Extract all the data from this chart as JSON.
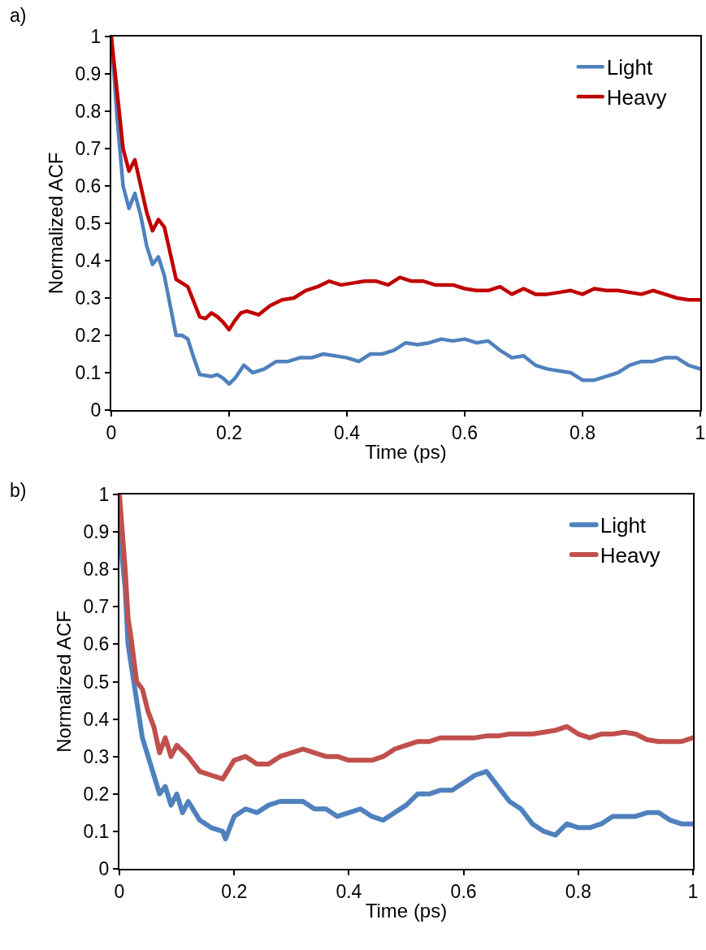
{
  "chart_data": [
    {
      "type": "line",
      "annotations": [
        "a)"
      ],
      "xlabel": "Time (ps)",
      "ylabel": "Normalized ACF",
      "xlim": [
        0,
        1
      ],
      "xticks": [
        0,
        0.2,
        0.4,
        0.6,
        0.8,
        1
      ],
      "ylim": [
        0,
        1
      ],
      "yticks": [
        0,
        0.1,
        0.2,
        0.3,
        0.4,
        0.5,
        0.6,
        0.7,
        0.8,
        0.9,
        1
      ],
      "grid": false,
      "legend": "top right",
      "marker": "none",
      "line_style": "solid",
      "series": [
        {
          "name": "Light",
          "color": "#4f81bd",
          "x": [
            0,
            0.01,
            0.02,
            0.03,
            0.04,
            0.05,
            0.06,
            0.07,
            0.08,
            0.09,
            0.1,
            0.11,
            0.12,
            0.13,
            0.14,
            0.15,
            0.17,
            0.18,
            0.19,
            0.2,
            0.21,
            0.225,
            0.24,
            0.26,
            0.28,
            0.3,
            0.32,
            0.34,
            0.36,
            0.38,
            0.4,
            0.42,
            0.44,
            0.46,
            0.48,
            0.5,
            0.52,
            0.54,
            0.56,
            0.58,
            0.6,
            0.62,
            0.64,
            0.66,
            0.68,
            0.7,
            0.72,
            0.74,
            0.76,
            0.78,
            0.8,
            0.82,
            0.84,
            0.86,
            0.88,
            0.9,
            0.92,
            0.94,
            0.96,
            0.98,
            1
          ],
          "values": [
            1,
            0.78,
            0.6,
            0.54,
            0.58,
            0.52,
            0.44,
            0.39,
            0.41,
            0.36,
            0.28,
            0.2,
            0.2,
            0.19,
            0.14,
            0.095,
            0.09,
            0.095,
            0.085,
            0.07,
            0.085,
            0.12,
            0.1,
            0.11,
            0.13,
            0.13,
            0.14,
            0.14,
            0.15,
            0.145,
            0.14,
            0.13,
            0.15,
            0.15,
            0.16,
            0.18,
            0.175,
            0.18,
            0.19,
            0.185,
            0.19,
            0.18,
            0.185,
            0.16,
            0.14,
            0.145,
            0.12,
            0.11,
            0.105,
            0.1,
            0.08,
            0.08,
            0.09,
            0.1,
            0.12,
            0.13,
            0.13,
            0.14,
            0.14,
            0.12,
            0.11
          ]
        },
        {
          "name": "Heavy",
          "color": "#c00000",
          "x": [
            0,
            0.01,
            0.02,
            0.03,
            0.04,
            0.05,
            0.06,
            0.07,
            0.08,
            0.09,
            0.1,
            0.11,
            0.12,
            0.13,
            0.14,
            0.15,
            0.16,
            0.17,
            0.18,
            0.19,
            0.2,
            0.21,
            0.22,
            0.23,
            0.25,
            0.27,
            0.29,
            0.31,
            0.33,
            0.35,
            0.37,
            0.39,
            0.41,
            0.43,
            0.45,
            0.47,
            0.49,
            0.51,
            0.53,
            0.55,
            0.58,
            0.6,
            0.62,
            0.64,
            0.66,
            0.68,
            0.7,
            0.72,
            0.74,
            0.76,
            0.78,
            0.8,
            0.82,
            0.84,
            0.86,
            0.88,
            0.9,
            0.92,
            0.94,
            0.96,
            0.98,
            1
          ],
          "values": [
            1,
            0.85,
            0.7,
            0.64,
            0.67,
            0.6,
            0.53,
            0.48,
            0.51,
            0.49,
            0.42,
            0.35,
            0.34,
            0.33,
            0.29,
            0.25,
            0.245,
            0.26,
            0.25,
            0.235,
            0.215,
            0.24,
            0.26,
            0.265,
            0.255,
            0.28,
            0.295,
            0.3,
            0.32,
            0.33,
            0.345,
            0.335,
            0.34,
            0.345,
            0.345,
            0.335,
            0.355,
            0.345,
            0.345,
            0.335,
            0.335,
            0.325,
            0.32,
            0.32,
            0.33,
            0.31,
            0.325,
            0.31,
            0.31,
            0.315,
            0.32,
            0.31,
            0.325,
            0.32,
            0.32,
            0.315,
            0.31,
            0.32,
            0.31,
            0.3,
            0.295,
            0.295
          ]
        }
      ]
    },
    {
      "type": "line",
      "annotations": [
        "b)"
      ],
      "xlabel": "Time (ps)",
      "ylabel": "Normalized ACF",
      "xlim": [
        0,
        1
      ],
      "xticks": [
        0,
        0.2,
        0.4,
        0.6,
        0.8,
        1
      ],
      "ylim": [
        0,
        1
      ],
      "yticks": [
        0,
        0.1,
        0.2,
        0.3,
        0.4,
        0.5,
        0.6,
        0.7,
        0.8,
        0.9,
        1
      ],
      "grid": false,
      "legend": "top right",
      "marker": "none",
      "line_style": "solid",
      "series": [
        {
          "name": "Light",
          "color": "#4f81bd",
          "x": [
            0,
            0.01,
            0.015,
            0.02,
            0.03,
            0.04,
            0.05,
            0.06,
            0.07,
            0.08,
            0.09,
            0.1,
            0.11,
            0.12,
            0.14,
            0.16,
            0.18,
            0.185,
            0.2,
            0.22,
            0.24,
            0.26,
            0.28,
            0.3,
            0.32,
            0.34,
            0.36,
            0.38,
            0.4,
            0.42,
            0.44,
            0.46,
            0.48,
            0.5,
            0.52,
            0.54,
            0.56,
            0.58,
            0.6,
            0.62,
            0.64,
            0.66,
            0.68,
            0.7,
            0.72,
            0.74,
            0.76,
            0.78,
            0.8,
            0.82,
            0.84,
            0.86,
            0.88,
            0.9,
            0.92,
            0.94,
            0.96,
            0.98,
            1
          ],
          "values": [
            0.9,
            0.75,
            0.6,
            0.55,
            0.45,
            0.35,
            0.3,
            0.25,
            0.2,
            0.22,
            0.17,
            0.2,
            0.15,
            0.18,
            0.13,
            0.11,
            0.1,
            0.08,
            0.14,
            0.16,
            0.15,
            0.17,
            0.18,
            0.18,
            0.18,
            0.16,
            0.16,
            0.14,
            0.15,
            0.16,
            0.14,
            0.13,
            0.15,
            0.17,
            0.2,
            0.2,
            0.21,
            0.21,
            0.23,
            0.25,
            0.26,
            0.22,
            0.18,
            0.16,
            0.12,
            0.1,
            0.09,
            0.12,
            0.11,
            0.11,
            0.12,
            0.14,
            0.14,
            0.14,
            0.15,
            0.15,
            0.13,
            0.12,
            0.12
          ]
        },
        {
          "name": "Heavy",
          "color": "#c0504d",
          "x": [
            0,
            0.01,
            0.015,
            0.02,
            0.03,
            0.04,
            0.05,
            0.06,
            0.07,
            0.08,
            0.09,
            0.1,
            0.12,
            0.14,
            0.16,
            0.18,
            0.2,
            0.22,
            0.24,
            0.26,
            0.28,
            0.3,
            0.32,
            0.34,
            0.36,
            0.38,
            0.4,
            0.42,
            0.44,
            0.46,
            0.48,
            0.5,
            0.52,
            0.54,
            0.56,
            0.58,
            0.6,
            0.62,
            0.64,
            0.66,
            0.68,
            0.7,
            0.72,
            0.74,
            0.76,
            0.78,
            0.8,
            0.82,
            0.84,
            0.86,
            0.88,
            0.9,
            0.92,
            0.94,
            0.96,
            0.98,
            1
          ],
          "values": [
            1,
            0.8,
            0.67,
            0.62,
            0.5,
            0.48,
            0.42,
            0.38,
            0.31,
            0.35,
            0.3,
            0.33,
            0.3,
            0.26,
            0.25,
            0.24,
            0.29,
            0.3,
            0.28,
            0.28,
            0.3,
            0.31,
            0.32,
            0.31,
            0.3,
            0.3,
            0.29,
            0.29,
            0.29,
            0.3,
            0.32,
            0.33,
            0.34,
            0.34,
            0.35,
            0.35,
            0.35,
            0.35,
            0.355,
            0.355,
            0.36,
            0.36,
            0.36,
            0.365,
            0.37,
            0.38,
            0.36,
            0.35,
            0.36,
            0.36,
            0.365,
            0.36,
            0.345,
            0.34,
            0.34,
            0.34,
            0.35
          ]
        }
      ]
    }
  ]
}
